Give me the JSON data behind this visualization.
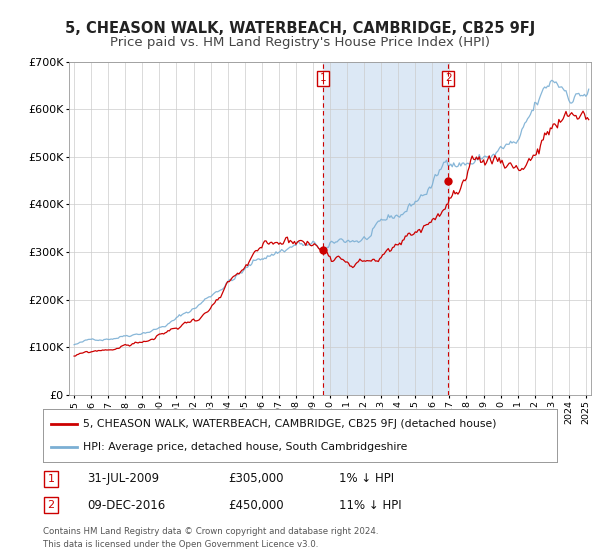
{
  "title": "5, CHEASON WALK, WATERBEACH, CAMBRIDGE, CB25 9FJ",
  "subtitle": "Price paid vs. HM Land Registry's House Price Index (HPI)",
  "ylim": [
    0,
    700000
  ],
  "yticks": [
    0,
    100000,
    200000,
    300000,
    400000,
    500000,
    600000,
    700000
  ],
  "ytick_labels": [
    "£0",
    "£100K",
    "£200K",
    "£300K",
    "£400K",
    "£500K",
    "£600K",
    "£700K"
  ],
  "xlim_start": 1994.7,
  "xlim_end": 2025.3,
  "xticks": [
    1995,
    1996,
    1997,
    1998,
    1999,
    2000,
    2001,
    2002,
    2003,
    2004,
    2005,
    2006,
    2007,
    2008,
    2009,
    2010,
    2011,
    2012,
    2013,
    2014,
    2015,
    2016,
    2017,
    2018,
    2019,
    2020,
    2021,
    2022,
    2023,
    2024,
    2025
  ],
  "hpi_color": "#7bafd4",
  "price_color": "#cc0000",
  "vline_color": "#cc0000",
  "marker1_date": 2009.58,
  "marker1_price": 305000,
  "marker2_date": 2016.94,
  "marker2_price": 450000,
  "vline1_x": 2009.58,
  "vline2_x": 2016.94,
  "shade_start": 2009.58,
  "shade_end": 2016.94,
  "shade_color": "#dce8f5",
  "legend_label1": "5, CHEASON WALK, WATERBEACH, CAMBRIDGE, CB25 9FJ (detached house)",
  "legend_label2": "HPI: Average price, detached house, South Cambridgeshire",
  "table_row1_num": "1",
  "table_row1_date": "31-JUL-2009",
  "table_row1_price": "£305,000",
  "table_row1_hpi": "1% ↓ HPI",
  "table_row2_num": "2",
  "table_row2_date": "09-DEC-2016",
  "table_row2_price": "£450,000",
  "table_row2_hpi": "11% ↓ HPI",
  "footnote1": "Contains HM Land Registry data © Crown copyright and database right 2024.",
  "footnote2": "This data is licensed under the Open Government Licence v3.0.",
  "background_color": "#ffffff",
  "grid_color": "#cccccc",
  "title_fontsize": 10.5,
  "subtitle_fontsize": 9.5
}
